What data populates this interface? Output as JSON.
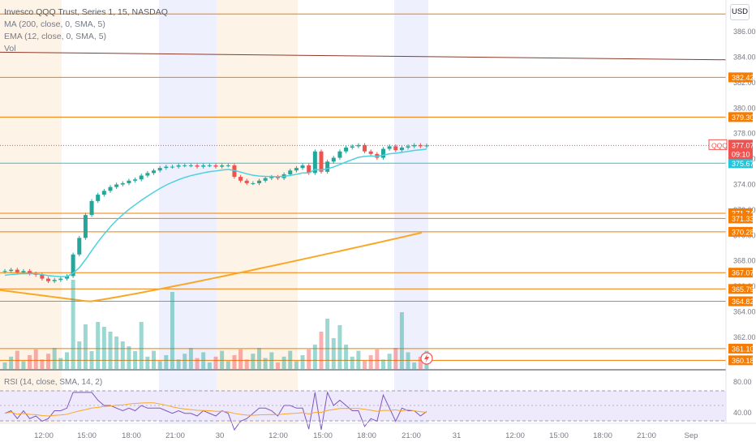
{
  "legend": {
    "title": "Invesco QQQ Trust, Series 1, 15, NASDAQ",
    "ma": "MA (200, close, 0, SMA, 5)",
    "ema": "EMA (12, close, 0, SMA, 5)",
    "vol": "Vol",
    "rsi": "RSI (14, close, SMA, 14, 2)"
  },
  "currency": "USD",
  "ticker_badge": {
    "symbol": "QQQ",
    "price": "377.07",
    "countdown": "09:10"
  },
  "colors": {
    "up": "#26a69a",
    "down": "#ef5350",
    "level": "#f57c00",
    "ma200": "#f9a825",
    "ema12": "#4dd0e1",
    "cyan_level": "#26c6da",
    "rsi": "#7e57c2"
  },
  "chart_data": {
    "type": "candlestick",
    "y_ticks": [
      "386.00",
      "384.00",
      "382.00",
      "380.00",
      "378.00",
      "376.00",
      "374.00",
      "372.00",
      "370.00",
      "368.00",
      "366.00",
      "364.00",
      "362.00"
    ],
    "x_ticks": [
      "12:00",
      "15:00",
      "18:00",
      "21:00",
      "30",
      "12:00",
      "15:00",
      "18:00",
      "21:00",
      "31",
      "12:00",
      "15:00",
      "18:00",
      "21:00",
      "Sep"
    ],
    "ylim": [
      359.5,
      388.5
    ],
    "horizontal_levels": [
      {
        "value": 387.4,
        "label": ""
      },
      {
        "value": 382.42,
        "label": "382.42"
      },
      {
        "value": 379.3,
        "label": "379.30"
      },
      {
        "value": 371.74,
        "label": "371.74"
      },
      {
        "value": 371.33,
        "label": "371.33"
      },
      {
        "value": 370.28,
        "label": "370.28"
      },
      {
        "value": 367.07,
        "label": "367.07"
      },
      {
        "value": 365.79,
        "label": "365.79"
      },
      {
        "value": 364.82,
        "label": "364.82"
      },
      {
        "value": 361.1,
        "label": "361.10"
      },
      {
        "value": 360.18,
        "label": "360.18"
      }
    ],
    "cyan_level": {
      "value": 375.67,
      "label": "375.67"
    },
    "trend_line": {
      "from": 384.4,
      "to": 383.8
    },
    "rsi_ticks": [
      "80.00",
      "40.00"
    ],
    "close_series": [
      367.2,
      367.3,
      367.1,
      367.2,
      367.0,
      366.9,
      366.6,
      366.4,
      366.5,
      366.6,
      366.8,
      368.5,
      369.8,
      371.6,
      372.7,
      373.2,
      373.5,
      373.8,
      374.0,
      374.1,
      374.3,
      374.4,
      374.7,
      374.9,
      375.1,
      375.3,
      375.4,
      375.4,
      375.5,
      375.5,
      375.5,
      375.4,
      375.5,
      375.5,
      375.4,
      375.5,
      375.5,
      374.6,
      374.3,
      374.1,
      374.1,
      374.3,
      374.5,
      374.6,
      374.5,
      374.8,
      375.1,
      375.3,
      375.5,
      374.9,
      376.6,
      375.0,
      375.8,
      376.1,
      376.6,
      376.9,
      377.0,
      377.1,
      376.6,
      376.4,
      376.1,
      376.8,
      377.0,
      376.7,
      376.9,
      377.0,
      377.1,
      377.0,
      377.07
    ]
  }
}
